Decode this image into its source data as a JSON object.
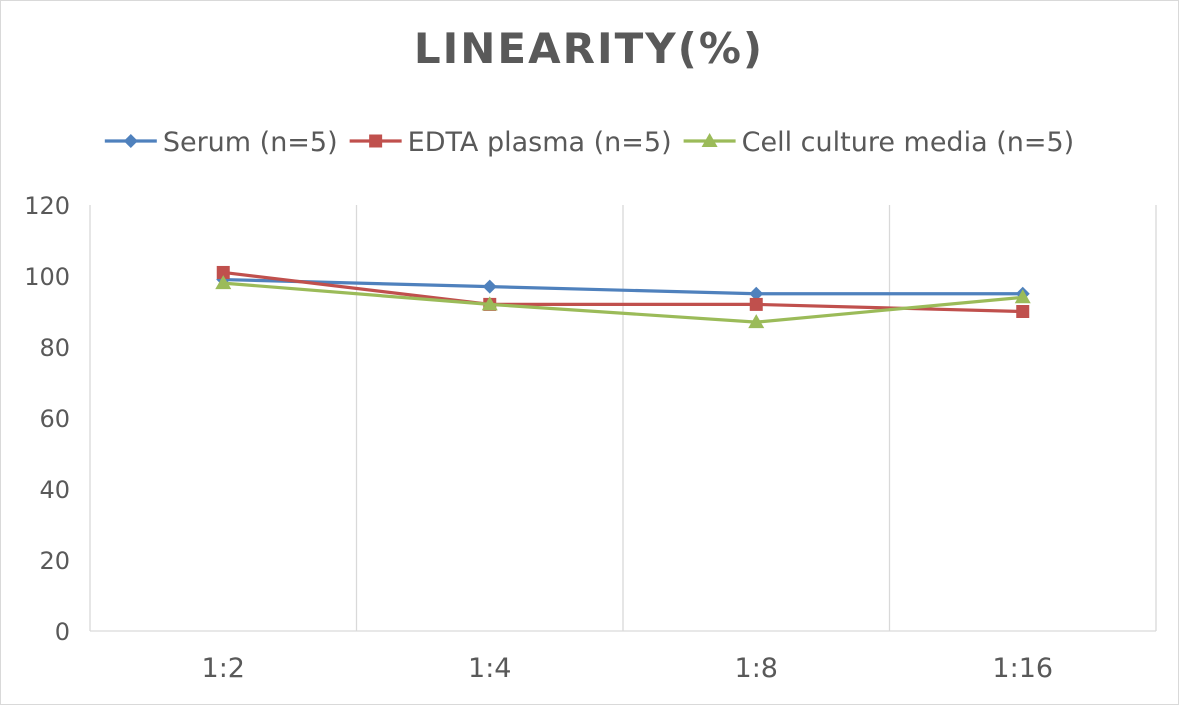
{
  "chart_data": {
    "type": "line",
    "title": "LINEARITY(%)",
    "categories": [
      "1:2",
      "1:4",
      "1:8",
      "1:16"
    ],
    "series": [
      {
        "name": "Serum (n=5)",
        "values": [
          99,
          97,
          95,
          95
        ],
        "color": "#4f81bd",
        "marker": "diamond"
      },
      {
        "name": "EDTA plasma (n=5)",
        "values": [
          101,
          92,
          92,
          90
        ],
        "color": "#c0504d",
        "marker": "square"
      },
      {
        "name": "Cell culture media (n=5)",
        "values": [
          98,
          92,
          87,
          94
        ],
        "color": "#9bbb59",
        "marker": "triangle"
      }
    ],
    "ylim": [
      0,
      120
    ],
    "yticks": [
      "0",
      "20",
      "40",
      "60",
      "80",
      "100",
      "120"
    ],
    "grid": "vertical",
    "legend": "top"
  }
}
